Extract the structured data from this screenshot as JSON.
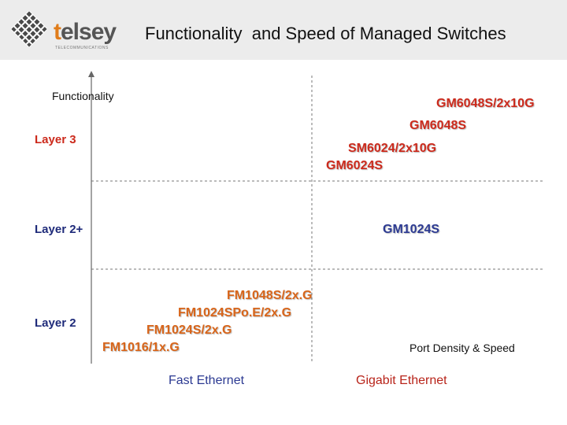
{
  "header": {
    "title": "Functionality  and Speed of Managed Switches",
    "logo": {
      "text_t": "t",
      "text_rest": "elsey",
      "subtitle": "TELECOMMUNICATIONS"
    }
  },
  "axes": {
    "y_label": "Functionality",
    "x_label": "Port Density & Speed"
  },
  "layers": {
    "layer3": "Layer 3",
    "layer2plus": "Layer 2+",
    "layer2": "Layer 2"
  },
  "categories": {
    "fast_ethernet": "Fast Ethernet",
    "gigabit_ethernet": "Gigabit Ethernet"
  },
  "products": {
    "gm6048s_2x10g": "GM6048S/2x10G",
    "gm6048s": "GM6048S",
    "sm6024_2x10g": "SM6024/2x10G",
    "gm6024s": "GM6024S",
    "gm1024s": "GM1024S",
    "fm1048s_2xg": "FM1048S/2x.G",
    "fm1024spoe_2xg": "FM1024SPo.E/2x.G",
    "fm1024s_2xg": "FM1024S/2x.G",
    "fm1016_1xg": "FM1016/1x.G"
  },
  "colors": {
    "red": "#cc2a1c",
    "orange": "#d8651a",
    "blue": "#2c3a92",
    "header_bg": "#ececec"
  }
}
